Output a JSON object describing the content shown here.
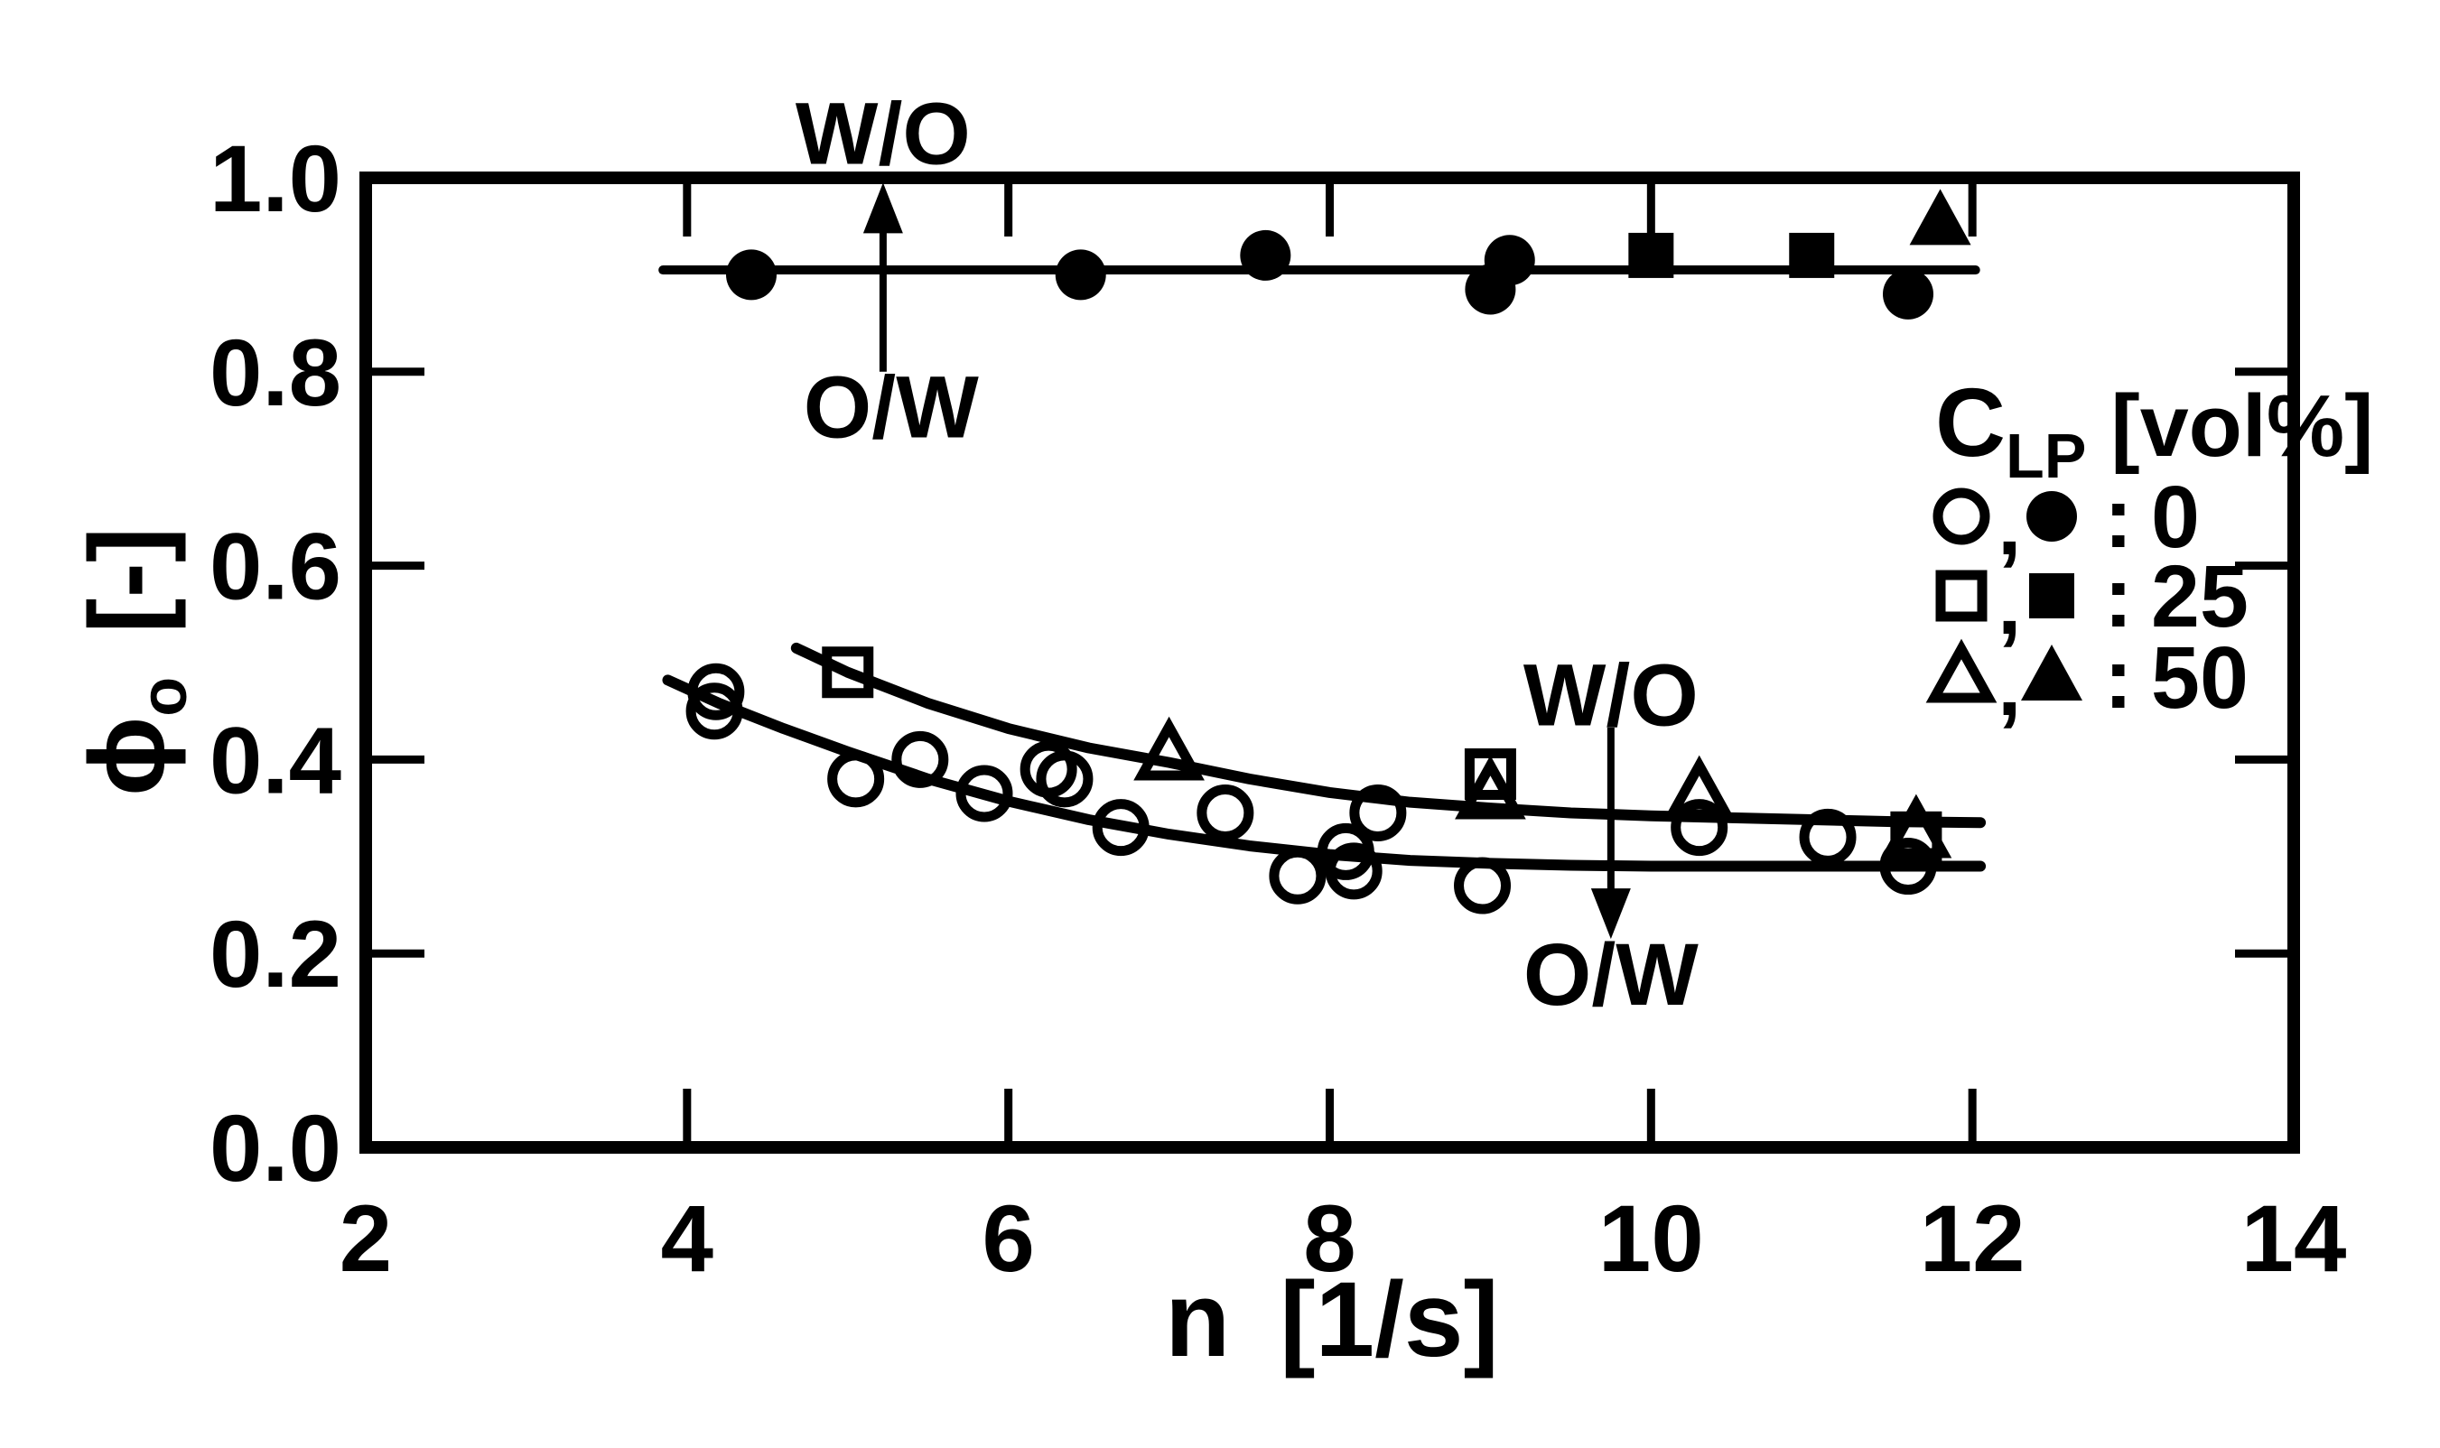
{
  "figure": {
    "background": "#ffffff",
    "ink_color": "#000000"
  },
  "chart_data": {
    "type": "scatter",
    "title": "",
    "xlabel": "n [1/s]",
    "ylabel": "φo [-]",
    "xlabel_parts": {
      "symbol": "n",
      "unit": "[1/s]"
    },
    "ylabel_parts": {
      "symbol": "ϕ",
      "subscript": "o",
      "unit": "[-]"
    },
    "xlim": [
      2,
      14
    ],
    "ylim": [
      0.0,
      1.0
    ],
    "grid": false,
    "x_ticks": {
      "values": [
        2,
        4,
        6,
        8,
        10,
        12,
        14
      ],
      "labels": [
        "2",
        "4",
        "6",
        "8",
        "10",
        "12",
        "14"
      ]
    },
    "y_ticks": {
      "values": [
        0.0,
        0.2,
        0.4,
        0.6,
        0.8,
        1.0
      ],
      "labels": [
        "0.0",
        "0.2",
        "0.4",
        "0.6",
        "0.8",
        "1.0"
      ]
    },
    "legend": {
      "position": "upper right",
      "title_parts": {
        "main": "C",
        "sub": "LP",
        "unit": "[vol%]"
      },
      "separator": ",",
      "colon": ":",
      "entries": [
        {
          "open_marker": "circle",
          "filled_marker": "circle",
          "label": "0"
        },
        {
          "open_marker": "square",
          "filled_marker": "square",
          "label": "25"
        },
        {
          "open_marker": "triangle",
          "filled_marker": "triangle",
          "label": "50"
        }
      ]
    },
    "series": [
      {
        "name": "O/W open circles (CLP 0 vol%)",
        "marker": "circle",
        "fill": "open",
        "points": [
          [
            4.18,
            0.47
          ],
          [
            4.17,
            0.45
          ],
          [
            5.05,
            0.38
          ],
          [
            5.45,
            0.4
          ],
          [
            5.85,
            0.365
          ],
          [
            6.25,
            0.39
          ],
          [
            6.35,
            0.38
          ],
          [
            6.7,
            0.33
          ],
          [
            7.35,
            0.345
          ],
          [
            7.8,
            0.28
          ],
          [
            8.1,
            0.305
          ],
          [
            8.15,
            0.285
          ],
          [
            8.3,
            0.345
          ],
          [
            8.95,
            0.27
          ],
          [
            10.3,
            0.33
          ],
          [
            11.1,
            0.32
          ],
          [
            11.6,
            0.29
          ]
        ]
      },
      {
        "name": "O/W open squares (CLP 25 vol%)",
        "marker": "square",
        "fill": "open",
        "points": [
          [
            5.0,
            0.49
          ],
          [
            9.0,
            0.385
          ],
          [
            11.65,
            0.32
          ]
        ]
      },
      {
        "name": "O/W open triangles (CLP 50 vol%)",
        "marker": "triangle",
        "fill": "open",
        "points": [
          [
            7.0,
            0.405
          ],
          [
            9.0,
            0.365
          ],
          [
            10.3,
            0.365
          ],
          [
            11.65,
            0.325
          ]
        ]
      },
      {
        "name": "W/O filled circles (CLP 0 vol%)",
        "marker": "circle",
        "fill": "solid",
        "points": [
          [
            4.4,
            0.9
          ],
          [
            6.45,
            0.9
          ],
          [
            7.6,
            0.92
          ],
          [
            9.0,
            0.885
          ],
          [
            9.12,
            0.915
          ],
          [
            11.6,
            0.88
          ]
        ]
      },
      {
        "name": "W/O filled squares (CLP 25 vol%)",
        "marker": "square",
        "fill": "solid",
        "points": [
          [
            10.0,
            0.92
          ],
          [
            11.0,
            0.92
          ]
        ]
      },
      {
        "name": "W/O filled triangles (CLP 50 vol%)",
        "marker": "triangle",
        "fill": "solid",
        "points": [
          [
            11.8,
            0.955
          ]
        ]
      }
    ],
    "lines": [
      {
        "name": "wo-phase-line",
        "style": "straight",
        "points": [
          [
            3.85,
            0.905
          ],
          [
            12.02,
            0.905
          ]
        ]
      },
      {
        "name": "upper-trend-curve",
        "style": "curve",
        "points": [
          [
            4.68,
            0.515
          ],
          [
            5.0,
            0.49
          ],
          [
            5.5,
            0.458
          ],
          [
            6.0,
            0.432
          ],
          [
            6.5,
            0.412
          ],
          [
            7.0,
            0.397
          ],
          [
            7.5,
            0.38
          ],
          [
            8.0,
            0.366
          ],
          [
            8.5,
            0.356
          ],
          [
            9.0,
            0.35
          ],
          [
            9.5,
            0.345
          ],
          [
            10.0,
            0.342
          ],
          [
            10.5,
            0.34
          ],
          [
            11.0,
            0.338
          ],
          [
            11.5,
            0.336
          ],
          [
            12.05,
            0.335
          ]
        ]
      },
      {
        "name": "lower-trend-curve",
        "style": "curve",
        "points": [
          [
            3.88,
            0.482
          ],
          [
            4.2,
            0.458
          ],
          [
            4.6,
            0.432
          ],
          [
            5.0,
            0.408
          ],
          [
            5.5,
            0.38
          ],
          [
            6.0,
            0.357
          ],
          [
            6.5,
            0.338
          ],
          [
            7.0,
            0.323
          ],
          [
            7.5,
            0.311
          ],
          [
            8.0,
            0.302
          ],
          [
            8.5,
            0.296
          ],
          [
            9.0,
            0.293
          ],
          [
            9.5,
            0.291
          ],
          [
            10.0,
            0.29
          ],
          [
            10.5,
            0.29
          ],
          [
            11.0,
            0.29
          ],
          [
            11.5,
            0.29
          ],
          [
            12.05,
            0.29
          ]
        ]
      }
    ],
    "annotations": {
      "texts": [
        {
          "id": "phase-label-wo-upper",
          "text": "W/O",
          "x": 5.22,
          "y": 1.045
        },
        {
          "id": "phase-label-ow-upper",
          "text": "O/W",
          "x": 5.27,
          "y": 0.763
        },
        {
          "id": "phase-label-wo-mid",
          "text": "W/O",
          "x": 9.75,
          "y": 0.466
        },
        {
          "id": "phase-label-ow-mid",
          "text": "O/W",
          "x": 9.75,
          "y": 0.178
        }
      ],
      "arrows": [
        {
          "id": "phase-arrow-up",
          "x": 5.22,
          "y_from": 0.8,
          "y_to": 0.995,
          "direction": "up"
        },
        {
          "id": "phase-arrow-down",
          "x": 9.75,
          "y_from": 0.433,
          "y_to": 0.215,
          "direction": "down"
        }
      ]
    }
  }
}
